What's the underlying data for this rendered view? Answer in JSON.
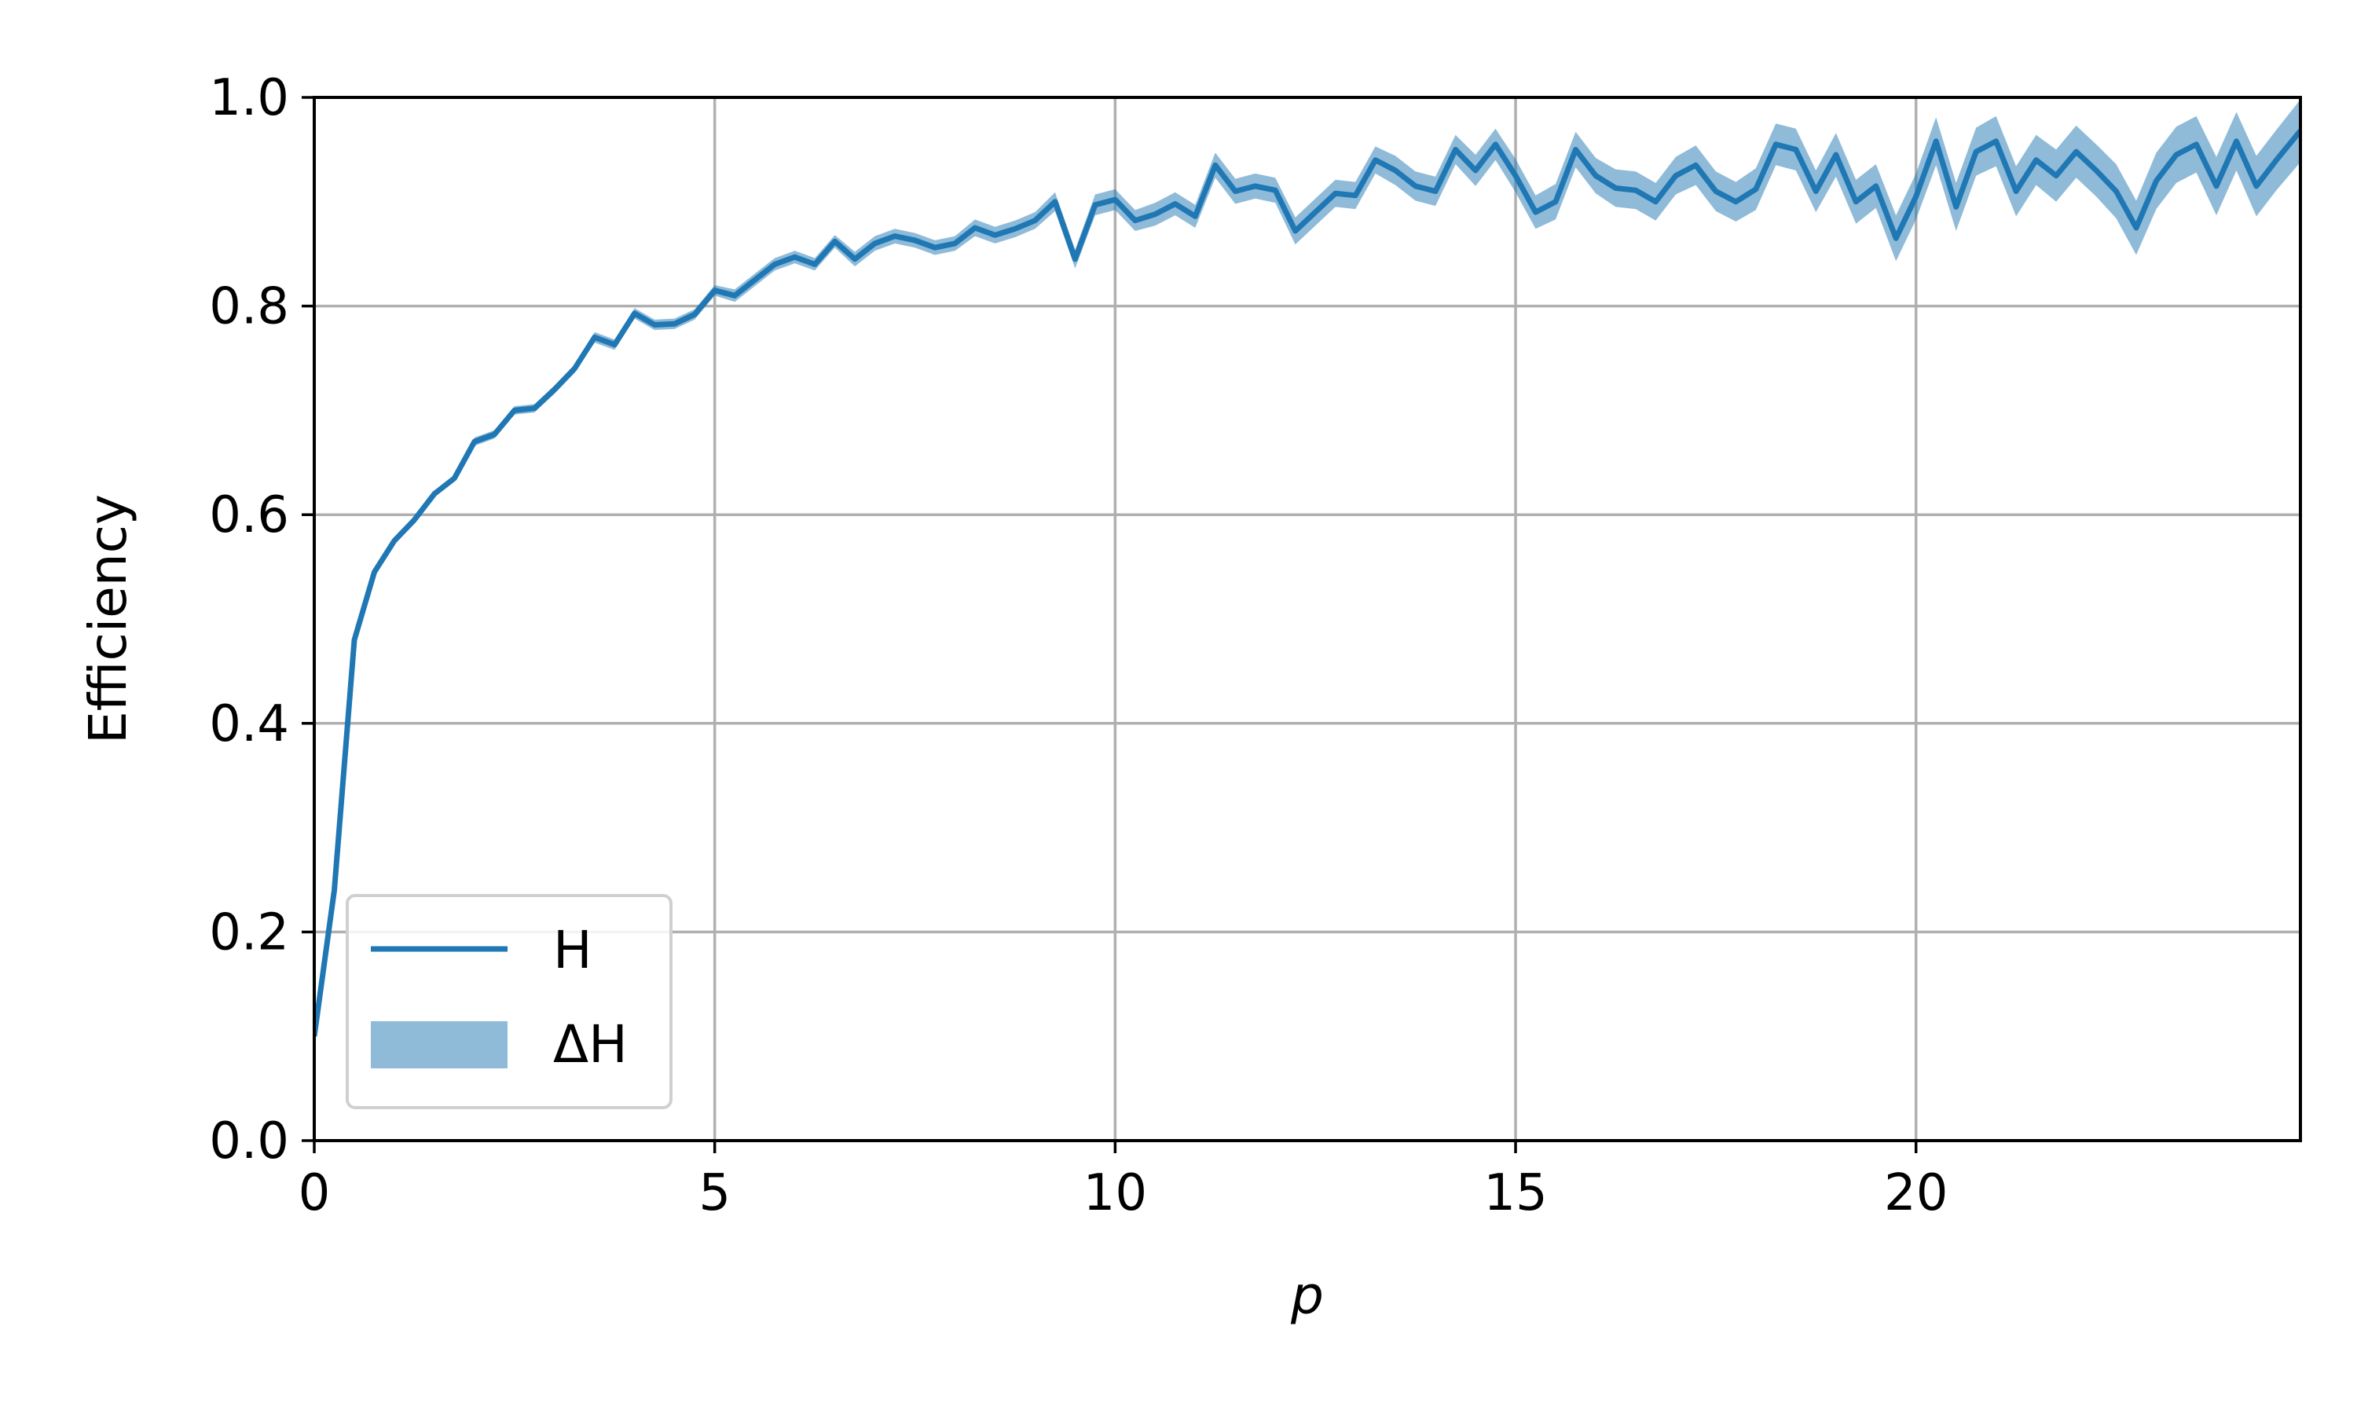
{
  "chart_data": {
    "type": "line",
    "title": "",
    "xlabel": "p",
    "ylabel": "Efficiency",
    "xlim": [
      0,
      24.8
    ],
    "ylim": [
      0.0,
      1.0
    ],
    "xticks": [
      0,
      5,
      10,
      15,
      20
    ],
    "xtick_labels": [
      "0",
      "5",
      "10",
      "15",
      "20"
    ],
    "yticks": [
      0.0,
      0.2,
      0.4,
      0.6,
      0.8,
      1.0
    ],
    "ytick_labels": [
      "0.0",
      "0.2",
      "0.4",
      "0.6",
      "0.8",
      "1.0"
    ],
    "grid": true,
    "legend": {
      "placement": "lower-left",
      "entries": [
        "H",
        "ΔH"
      ]
    },
    "colors": {
      "line": "#1f77b4",
      "band": "#1f77b4",
      "grid": "#b0b0b0"
    },
    "series": [
      {
        "name": "H",
        "x": [
          0,
          0.25,
          0.5,
          0.75,
          1,
          1.25,
          1.5,
          1.75,
          2,
          2.25,
          2.5,
          2.75,
          3,
          3.25,
          3.5,
          3.75,
          4,
          4.25,
          4.5,
          4.75,
          5,
          5.25,
          5.5,
          5.75,
          6,
          6.25,
          6.5,
          6.75,
          7,
          7.25,
          7.5,
          7.75,
          8,
          8.25,
          8.5,
          8.75,
          9,
          9.25,
          9.5,
          9.75,
          10,
          10.25,
          10.5,
          10.75,
          11,
          11.25,
          11.5,
          11.75,
          12,
          12.25,
          12.5,
          12.75,
          13,
          13.25,
          13.5,
          13.75,
          14,
          14.25,
          14.5,
          14.75,
          15,
          15.25,
          15.5,
          15.75,
          16,
          16.25,
          16.5,
          16.75,
          17,
          17.25,
          17.5,
          17.75,
          18,
          18.25,
          18.5,
          18.75,
          19,
          19.25,
          19.5,
          19.75,
          20,
          20.25,
          20.5,
          20.75,
          21,
          21.25,
          21.5,
          21.75,
          22,
          22.25,
          22.5,
          22.75,
          23,
          23.25,
          23.5,
          23.75,
          24,
          24.25,
          24.5,
          24.8
        ],
        "y": [
          0.1,
          0.24,
          0.48,
          0.545,
          0.575,
          0.595,
          0.62,
          0.635,
          0.67,
          0.677,
          0.7,
          0.702,
          0.72,
          0.74,
          0.77,
          0.763,
          0.793,
          0.782,
          0.783,
          0.792,
          0.815,
          0.81,
          0.825,
          0.84,
          0.847,
          0.84,
          0.862,
          0.845,
          0.86,
          0.867,
          0.863,
          0.856,
          0.86,
          0.875,
          0.868,
          0.874,
          0.882,
          0.9,
          0.845,
          0.897,
          0.902,
          0.882,
          0.888,
          0.898,
          0.886,
          0.935,
          0.91,
          0.915,
          0.911,
          0.872,
          0.89,
          0.908,
          0.906,
          0.94,
          0.93,
          0.915,
          0.91,
          0.95,
          0.93,
          0.955,
          0.925,
          0.89,
          0.9,
          0.95,
          0.925,
          0.913,
          0.911,
          0.9,
          0.925,
          0.935,
          0.91,
          0.9,
          0.912,
          0.955,
          0.95,
          0.91,
          0.945,
          0.9,
          0.915,
          0.865,
          0.905,
          0.958,
          0.895,
          0.948,
          0.958,
          0.91,
          0.94,
          0.925,
          0.948,
          0.93,
          0.91,
          0.875,
          0.92,
          0.945,
          0.955,
          0.915,
          0.958,
          0.915,
          0.94,
          0.968
        ]
      },
      {
        "name": "ΔH",
        "halfwidth": [
          0.003,
          0.003,
          0.003,
          0.003,
          0.003,
          0.003,
          0.003,
          0.003,
          0.004,
          0.004,
          0.004,
          0.004,
          0.004,
          0.004,
          0.005,
          0.005,
          0.005,
          0.005,
          0.005,
          0.005,
          0.005,
          0.006,
          0.006,
          0.006,
          0.006,
          0.006,
          0.006,
          0.007,
          0.007,
          0.007,
          0.007,
          0.007,
          0.007,
          0.008,
          0.008,
          0.008,
          0.008,
          0.009,
          0.009,
          0.01,
          0.01,
          0.01,
          0.011,
          0.011,
          0.011,
          0.012,
          0.012,
          0.012,
          0.012,
          0.013,
          0.013,
          0.013,
          0.013,
          0.013,
          0.014,
          0.014,
          0.014,
          0.014,
          0.015,
          0.015,
          0.016,
          0.016,
          0.017,
          0.017,
          0.017,
          0.018,
          0.018,
          0.018,
          0.018,
          0.019,
          0.019,
          0.019,
          0.02,
          0.02,
          0.02,
          0.02,
          0.021,
          0.021,
          0.021,
          0.022,
          0.022,
          0.023,
          0.023,
          0.023,
          0.024,
          0.024,
          0.024,
          0.025,
          0.025,
          0.025,
          0.026,
          0.026,
          0.027,
          0.027,
          0.027,
          0.028,
          0.028,
          0.029,
          0.029,
          0.03
        ]
      }
    ]
  }
}
